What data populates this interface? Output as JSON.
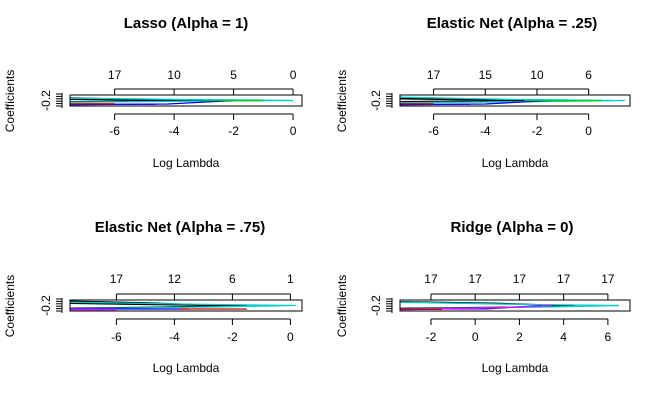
{
  "chart_data": [
    {
      "type": "line",
      "title": "Lasso (Alpha = 1)",
      "xlabel": "Log Lambda",
      "ylabel": "Coefficients",
      "xlim": [
        -7.5,
        0.3
      ],
      "x_ticks": [
        -6,
        -4,
        -2,
        0
      ],
      "x_tick_labels": [
        "-6",
        "-4",
        "-2",
        "0"
      ],
      "y_tick_labels": [
        "-0.2"
      ],
      "top_ticks": [
        -6.0,
        -4.0,
        -2.0,
        0.0
      ],
      "top_tick_labels": [
        "17",
        "10",
        "5",
        "0"
      ],
      "grid": false,
      "series": [
        {
          "color": "#000000",
          "x": [
            -7.5,
            -4.5,
            -1.5
          ],
          "y": [
            0.75,
            0.55,
            0.5
          ]
        },
        {
          "color": "#000000",
          "x": [
            -7.5,
            -3.0,
            -1.0
          ],
          "y": [
            0.6,
            0.52,
            0.5
          ]
        },
        {
          "color": "#000000",
          "x": [
            -7.5,
            -5.0,
            -2.0
          ],
          "y": [
            0.4,
            0.45,
            0.5
          ]
        },
        {
          "color": "#00CDCD",
          "x": [
            -7.5,
            -4.0,
            -1.5,
            0.0
          ],
          "y": [
            0.72,
            0.6,
            0.55,
            0.5
          ]
        },
        {
          "color": "#00CDCD",
          "x": [
            -7.5,
            -2.5,
            0.0
          ],
          "y": [
            0.35,
            0.45,
            0.5
          ]
        },
        {
          "color": "#FF00FF",
          "x": [
            -7.5,
            -4.6
          ],
          "y": [
            0.15,
            0.15
          ]
        },
        {
          "color": "#0000FF",
          "x": [
            -7.5,
            -4.2,
            -2.0
          ],
          "y": [
            0.12,
            0.18,
            0.5
          ]
        },
        {
          "color": "#CD0000",
          "x": [
            -7.5,
            -6.0
          ],
          "y": [
            0.2,
            0.2
          ]
        },
        {
          "color": "#00CD00",
          "x": [
            -3.0,
            -1.0
          ],
          "y": [
            0.5,
            0.5
          ]
        }
      ]
    },
    {
      "type": "line",
      "title": "Elastic Net (Alpha = .25)",
      "xlabel": "Log Lambda",
      "ylabel": "Coefficients",
      "xlim": [
        -7.3,
        1.6
      ],
      "x_ticks": [
        -6,
        -4,
        -2,
        0
      ],
      "x_tick_labels": [
        "-6",
        "-4",
        "-2",
        "0"
      ],
      "y_tick_labels": [
        "-0.2"
      ],
      "top_ticks": [
        -6.0,
        -4.0,
        -2.0,
        0.0
      ],
      "top_tick_labels": [
        "17",
        "15",
        "10",
        "6"
      ],
      "grid": false,
      "series": [
        {
          "color": "#000000",
          "x": [
            -7.3,
            -4.0,
            -1.0
          ],
          "y": [
            0.75,
            0.6,
            0.5
          ]
        },
        {
          "color": "#000000",
          "x": [
            -7.3,
            -3.5,
            -1.5
          ],
          "y": [
            0.65,
            0.55,
            0.5
          ]
        },
        {
          "color": "#000000",
          "x": [
            -7.3,
            -5.0,
            -2.0
          ],
          "y": [
            0.4,
            0.45,
            0.5
          ]
        },
        {
          "color": "#00CDCD",
          "x": [
            -7.3,
            -3.0,
            1.0
          ],
          "y": [
            0.8,
            0.6,
            0.5
          ]
        },
        {
          "color": "#00CDCD",
          "x": [
            -7.3,
            -2.0,
            1.4
          ],
          "y": [
            0.3,
            0.4,
            0.5
          ]
        },
        {
          "color": "#FF00FF",
          "x": [
            -7.3,
            -4.6
          ],
          "y": [
            0.15,
            0.15
          ]
        },
        {
          "color": "#0000FF",
          "x": [
            -7.3,
            -4.0,
            -1.5
          ],
          "y": [
            0.12,
            0.18,
            0.5
          ]
        },
        {
          "color": "#CD0000",
          "x": [
            -7.3,
            -6.0
          ],
          "y": [
            0.2,
            0.2
          ]
        },
        {
          "color": "#00CD00",
          "x": [
            -2.5,
            0.5
          ],
          "y": [
            0.5,
            0.5
          ]
        }
      ]
    },
    {
      "type": "line",
      "title": "Elastic Net (Alpha = .75)",
      "xlabel": "Log Lambda",
      "ylabel": "Coefficients",
      "xlim": [
        -7.6,
        0.4
      ],
      "x_ticks": [
        -6,
        -4,
        -2,
        0
      ],
      "x_tick_labels": [
        "-6",
        "-4",
        "-2",
        "0"
      ],
      "y_tick_labels": [
        "-0.2"
      ],
      "top_ticks": [
        -6.0,
        -4.0,
        -2.0,
        0.0
      ],
      "top_tick_labels": [
        "17",
        "12",
        "6",
        "1"
      ],
      "grid": false,
      "series": [
        {
          "color": "#000000",
          "x": [
            -7.6,
            -5.0,
            -2.5
          ],
          "y": [
            0.9,
            0.75,
            0.5
          ]
        },
        {
          "color": "#000000",
          "x": [
            -7.6,
            -4.0,
            -1.5
          ],
          "y": [
            0.7,
            0.55,
            0.5
          ]
        },
        {
          "color": "#000000",
          "x": [
            -7.6,
            -4.5,
            -2.0
          ],
          "y": [
            0.25,
            0.35,
            0.5
          ]
        },
        {
          "color": "#00CDCD",
          "x": [
            -7.6,
            -3.0,
            0.2
          ],
          "y": [
            0.8,
            0.6,
            0.5
          ]
        },
        {
          "color": "#00CDCD",
          "x": [
            -7.6,
            -2.0,
            0.0
          ],
          "y": [
            0.2,
            0.4,
            0.5
          ]
        },
        {
          "color": "#0000FF",
          "x": [
            -7.6,
            -3.5
          ],
          "y": [
            0.18,
            0.18
          ]
        },
        {
          "color": "#CD0000",
          "x": [
            -3.8,
            -1.5
          ],
          "y": [
            0.18,
            0.18
          ]
        },
        {
          "color": "#FF00FF",
          "x": [
            -7.6,
            -6.0
          ],
          "y": [
            0.12,
            0.12
          ]
        }
      ]
    },
    {
      "type": "line",
      "title": "Ridge (Alpha = 0)",
      "xlabel": "Log Lambda",
      "ylabel": "Coefficients",
      "xlim": [
        -3.4,
        7.0
      ],
      "x_ticks": [
        -2,
        0,
        2,
        4,
        6
      ],
      "x_tick_labels": [
        "-2",
        "0",
        "2",
        "4",
        "6"
      ],
      "y_tick_labels": [
        "-0.2"
      ],
      "top_ticks": [
        -2.0,
        0.0,
        2.0,
        4.0,
        6.0
      ],
      "top_tick_labels": [
        "17",
        "17",
        "17",
        "17",
        "17"
      ],
      "grid": false,
      "series": [
        {
          "color": "#000000",
          "x": [
            -3.4,
            1.0,
            4.0
          ],
          "y": [
            0.85,
            0.7,
            0.5
          ]
        },
        {
          "color": "#000000",
          "x": [
            -3.4,
            2.0,
            4.5
          ],
          "y": [
            0.25,
            0.35,
            0.5
          ]
        },
        {
          "color": "#00CDCD",
          "x": [
            -3.4,
            2.0,
            6.5
          ],
          "y": [
            0.8,
            0.6,
            0.5
          ]
        },
        {
          "color": "#00CDCD",
          "x": [
            -3.4,
            3.0,
            6.5
          ],
          "y": [
            0.2,
            0.35,
            0.5
          ]
        },
        {
          "color": "#0000FF",
          "x": [
            -3.4,
            0.5,
            3.0
          ],
          "y": [
            0.18,
            0.2,
            0.5
          ]
        },
        {
          "color": "#FF00FF",
          "x": [
            -3.4,
            1.0,
            3.5
          ],
          "y": [
            0.12,
            0.3,
            0.5
          ]
        },
        {
          "color": "#CD0000",
          "x": [
            -3.4,
            -1.5
          ],
          "y": [
            0.15,
            0.15
          ]
        }
      ]
    }
  ]
}
